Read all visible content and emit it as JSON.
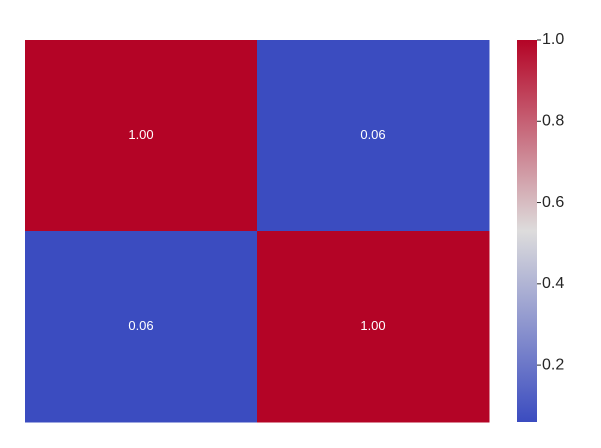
{
  "chart_data": {
    "type": "heatmap",
    "values": [
      [
        1,
        0.06
      ],
      [
        0.06,
        1
      ]
    ],
    "value_labels": [
      [
        "1.00",
        "0.06"
      ],
      [
        "0.06",
        "1.00"
      ]
    ],
    "colorscale": [
      "#3b4cc0",
      "#dddcdc",
      "#b40426"
    ],
    "clim": [
      0.06,
      1
    ],
    "cticks": [
      0.2,
      0.4,
      0.6,
      0.8,
      {
        "value": 1,
        "label": "1.0"
      }
    ]
  }
}
